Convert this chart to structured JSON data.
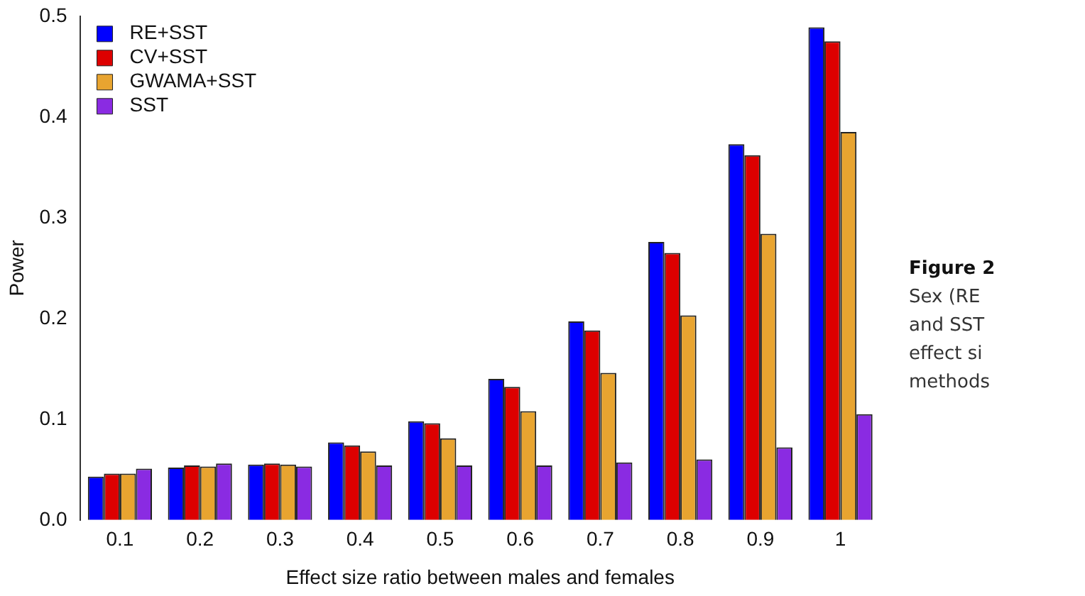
{
  "chart_data": {
    "type": "bar",
    "xlabel": "Effect size ratio between males and females",
    "ylabel": "Power",
    "categories": [
      "0.1",
      "0.2",
      "0.3",
      "0.4",
      "0.5",
      "0.6",
      "0.7",
      "0.8",
      "0.9",
      "1"
    ],
    "series": [
      {
        "name": "RE+SST",
        "color": "#0000ff",
        "values": [
          0.043,
          0.052,
          0.055,
          0.077,
          0.098,
          0.14,
          0.197,
          0.276,
          0.373,
          0.489
        ]
      },
      {
        "name": "CV+SST",
        "color": "#dd0000",
        "values": [
          0.046,
          0.054,
          0.056,
          0.074,
          0.096,
          0.132,
          0.188,
          0.265,
          0.362,
          0.475
        ]
      },
      {
        "name": "GWAMA+SST",
        "color": "#e8a430",
        "values": [
          0.046,
          0.053,
          0.055,
          0.068,
          0.081,
          0.108,
          0.146,
          0.203,
          0.284,
          0.385
        ]
      },
      {
        "name": "SST",
        "color": "#8a2be2",
        "values": [
          0.051,
          0.056,
          0.053,
          0.054,
          0.054,
          0.054,
          0.057,
          0.06,
          0.072,
          0.105
        ]
      }
    ],
    "ylim": [
      0,
      0.5
    ],
    "yticks": [
      {
        "value": 0,
        "label": "0.0"
      },
      0.1,
      0.2,
      0.3,
      0.4,
      0.5
    ],
    "grid": false,
    "legend": "top left",
    "annotations": [
      "Figure 2",
      "Sex (RE",
      "and SST",
      "effect si",
      "methods"
    ]
  }
}
